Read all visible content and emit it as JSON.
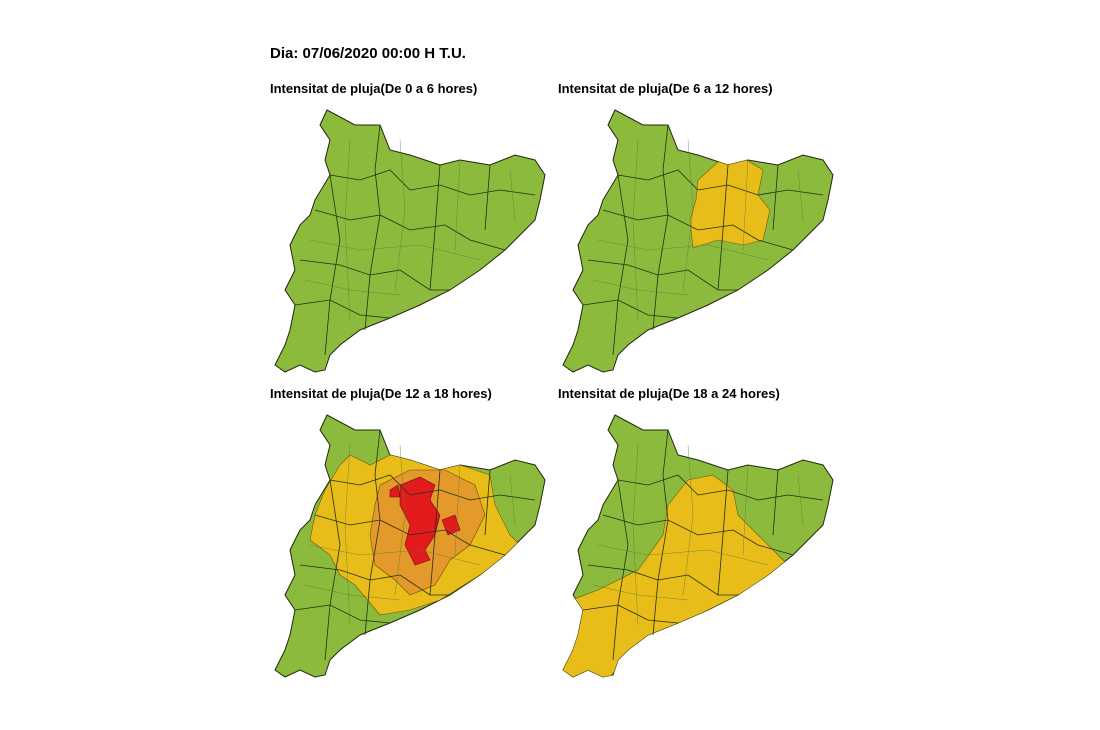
{
  "header": {
    "title": "Dia: 07/06/2020 00:00 H T.U."
  },
  "panels": [
    {
      "title": "Intensitat de pluja(De 0 a 6 hores)"
    },
    {
      "title": "Intensitat de pluja(De 6 a 12 hores)"
    },
    {
      "title": "Intensitat de pluja(De 12 a 18 hores)"
    },
    {
      "title": "Intensitat de pluja(De 18 a 24 hores)"
    }
  ]
}
